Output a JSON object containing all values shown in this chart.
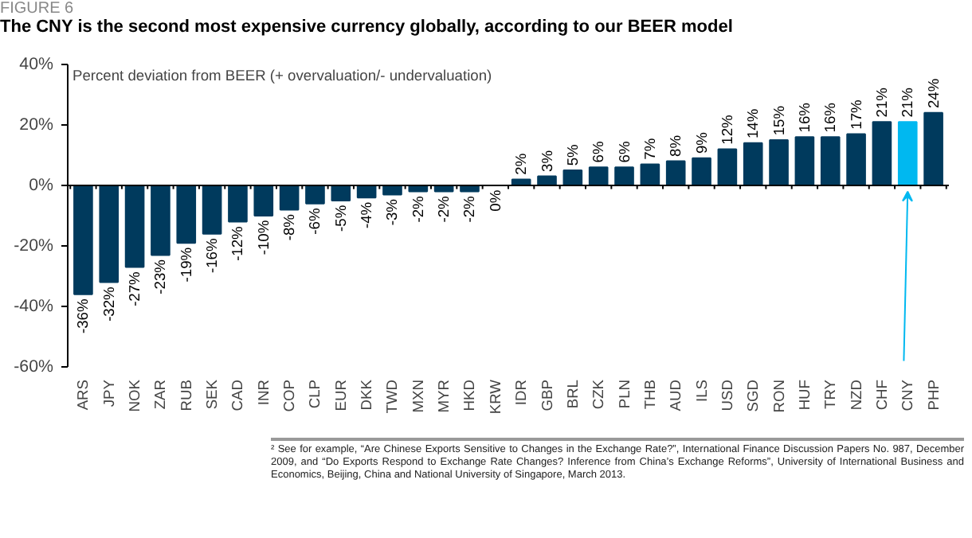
{
  "chart_data": {
    "type": "bar",
    "title": "The CNY is the second most expensive currency globally, according to our BEER model",
    "subtitle": "Percent deviation from BEER (+ overvaluation/- undervaluation)",
    "annotations": [
      "FIGURE 6",
      "² See for example, “Are Chinese Exports Sensitive to Changes in the Exchange Rate?”, International Finance Discussion Papers No. 987, December 2009, and “Do Exports Respond to Exchange Rate Changes? Inference from China’s Exchange Reforms”, University of International Business and Economics, Beijing, China and National University of Singapore, March 2013."
    ],
    "categories": [
      "ARS",
      "JPY",
      "NOK",
      "ZAR",
      "RUB",
      "SEK",
      "CAD",
      "INR",
      "COP",
      "CLP",
      "EUR",
      "DKK",
      "TWD",
      "MXN",
      "MYR",
      "HKD",
      "KRW",
      "IDR",
      "GBP",
      "BRL",
      "CZK",
      "PLN",
      "THB",
      "AUD",
      "ILS",
      "USD",
      "SGD",
      "RON",
      "HUF",
      "TRY",
      "NZD",
      "CHF",
      "CNY",
      "PHP"
    ],
    "values": [
      -36,
      -32,
      -27,
      -23,
      -19,
      -16,
      -12,
      -10,
      -8,
      -6,
      -5,
      -4,
      -3,
      -2,
      -2,
      -2,
      0,
      2,
      3,
      5,
      6,
      6,
      7,
      8,
      9,
      12,
      14,
      15,
      16,
      16,
      17,
      21,
      21,
      24
    ],
    "value_labels": [
      "-36%",
      "-32%",
      "-27%",
      "-23%",
      "-19%",
      "-16%",
      "-12%",
      "-10%",
      "-8%",
      "-6%",
      "-5%",
      "-4%",
      "-3%",
      "-2%",
      "-2%",
      "-2%",
      "0%",
      "2%",
      "3%",
      "5%",
      "6%",
      "6%",
      "7%",
      "8%",
      "9%",
      "12%",
      "14%",
      "15%",
      "16%",
      "16%",
      "17%",
      "21%",
      "21%",
      "24%"
    ],
    "colors": [
      "#003a5d",
      "#003a5d",
      "#003a5d",
      "#003a5d",
      "#003a5d",
      "#003a5d",
      "#003a5d",
      "#003a5d",
      "#003a5d",
      "#003a5d",
      "#003a5d",
      "#003a5d",
      "#003a5d",
      "#003a5d",
      "#003a5d",
      "#003a5d",
      "#003a5d",
      "#003a5d",
      "#003a5d",
      "#003a5d",
      "#003a5d",
      "#003a5d",
      "#003a5d",
      "#003a5d",
      "#003a5d",
      "#003a5d",
      "#003a5d",
      "#003a5d",
      "#003a5d",
      "#003a5d",
      "#003a5d",
      "#003a5d",
      "#00b8f0",
      "#003a5d"
    ],
    "ylim": [
      -60,
      40
    ],
    "yticks": [
      {
        "value": -60,
        "label": "-60%"
      },
      {
        "value": -40,
        "label": "-40%"
      },
      {
        "value": -20,
        "label": "-20%"
      },
      {
        "value": 0,
        "label": "0%"
      },
      {
        "value": 20,
        "label": "20%"
      },
      {
        "value": 40,
        "label": "40%"
      }
    ],
    "tick_labels": true
  }
}
